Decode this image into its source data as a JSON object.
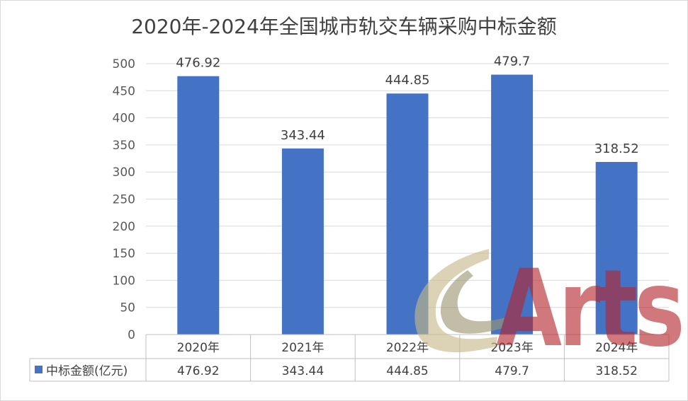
{
  "chart_data": {
    "type": "bar",
    "title": "2020年-2024年全国城市轨交车辆采购中标金额",
    "categories": [
      "2020年",
      "2021年",
      "2022年",
      "2023年",
      "2024年"
    ],
    "series": [
      {
        "name": "中标金额(亿元)",
        "values": [
          476.92,
          343.44,
          444.85,
          479.7,
          318.52
        ],
        "color": "#4472c4"
      }
    ],
    "data_labels": [
      "476.92",
      "343.44",
      "444.85",
      "479.7",
      "318.52"
    ],
    "ylim": [
      0,
      500
    ],
    "yticks": [
      0,
      50,
      100,
      150,
      200,
      250,
      300,
      350,
      400,
      450,
      500
    ],
    "grid": true,
    "legend": "data-table-left",
    "data_table": true
  },
  "watermark": {
    "text": "Arts",
    "color": "#b5272d",
    "swoosh_color": "#c8b98a"
  }
}
